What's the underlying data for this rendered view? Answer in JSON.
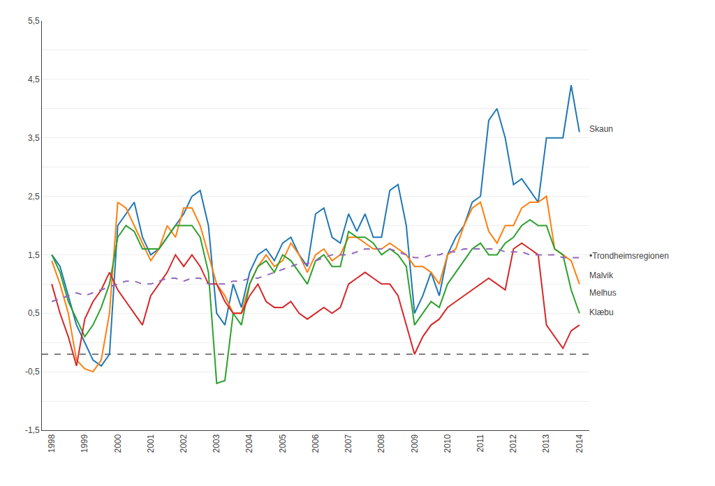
{
  "chart_data": {
    "type": "line",
    "x": [
      1998,
      1998.25,
      1998.5,
      1998.75,
      1999,
      1999.25,
      1999.5,
      1999.75,
      2000,
      2000.25,
      2000.5,
      2000.75,
      2001,
      2001.25,
      2001.5,
      2001.75,
      2002,
      2002.25,
      2002.5,
      2002.75,
      2003,
      2003.25,
      2003.5,
      2003.75,
      2004,
      2004.25,
      2004.5,
      2004.75,
      2005,
      2005.25,
      2005.5,
      2005.75,
      2006,
      2006.25,
      2006.5,
      2006.75,
      2007,
      2007.25,
      2007.5,
      2007.75,
      2008,
      2008.25,
      2008.5,
      2008.75,
      2009,
      2009.25,
      2009.5,
      2009.75,
      2010,
      2010.25,
      2010.5,
      2010.75,
      2011,
      2011.25,
      2011.5,
      2011.75,
      2012,
      2012.25,
      2012.5,
      2012.75,
      2013,
      2013.25,
      2013.5,
      2013.75,
      2014
    ],
    "series": [
      {
        "line_style": "solid",
        "values": [
          1.5,
          1.3,
          0.8,
          0.3,
          0.0,
          -0.3,
          -0.4,
          -0.2,
          2.0,
          2.2,
          2.4,
          1.8,
          1.5,
          1.6,
          1.8,
          2.0,
          2.2,
          2.5,
          2.6,
          2.0,
          0.5,
          0.3,
          1.0,
          0.6,
          1.2,
          1.5,
          1.6,
          1.4,
          1.7,
          1.8,
          1.5,
          1.3,
          2.2,
          2.3,
          1.8,
          1.7,
          2.2,
          1.9,
          2.2,
          1.8,
          1.8,
          2.6,
          2.7,
          2.0,
          0.5,
          0.8,
          1.2,
          0.8,
          1.5,
          1.8,
          2.0,
          2.4,
          2.5,
          3.8,
          4.0,
          3.5,
          2.7,
          2.8,
          2.6,
          2.4,
          3.5,
          3.5,
          3.5,
          4.4,
          3.6
        ]
      },
      {
        "line_style": "solid",
        "values": [
          1.4,
          1.0,
          0.5,
          -0.3,
          -0.45,
          -0.5,
          -0.3,
          0.5,
          2.4,
          2.3,
          2.0,
          1.7,
          1.4,
          1.6,
          2.0,
          1.8,
          2.3,
          2.3,
          2.0,
          1.5,
          1.0,
          0.8,
          0.5,
          0.5,
          1.0,
          1.3,
          1.5,
          1.3,
          1.4,
          1.7,
          1.5,
          1.2,
          1.5,
          1.6,
          1.4,
          1.5,
          1.8,
          1.8,
          1.7,
          1.6,
          1.6,
          1.7,
          1.6,
          1.5,
          1.3,
          1.3,
          1.2,
          1.0,
          1.5,
          1.6,
          2.0,
          2.3,
          2.4,
          1.9,
          1.7,
          2.0,
          2.0,
          2.3,
          2.4,
          2.4,
          2.5,
          1.6,
          1.5,
          1.4,
          1.0
        ]
      },
      {
        "line_style": "solid",
        "values": [
          1.5,
          1.2,
          0.7,
          0.4,
          0.1,
          0.3,
          0.6,
          1.0,
          1.8,
          2.0,
          1.9,
          1.6,
          1.6,
          1.6,
          1.8,
          2.0,
          2.0,
          2.0,
          1.8,
          1.2,
          -0.7,
          -0.65,
          0.5,
          0.3,
          1.0,
          1.3,
          1.4,
          1.2,
          1.5,
          1.4,
          1.2,
          1.0,
          1.4,
          1.5,
          1.3,
          1.3,
          1.9,
          1.8,
          1.8,
          1.7,
          1.5,
          1.6,
          1.5,
          1.3,
          0.3,
          0.5,
          0.7,
          0.6,
          1.0,
          1.2,
          1.4,
          1.6,
          1.7,
          1.5,
          1.5,
          1.7,
          1.8,
          2.0,
          2.1,
          2.0,
          2.0,
          1.6,
          1.5,
          0.9,
          0.5
        ]
      },
      {
        "line_style": "solid",
        "values": [
          1.0,
          0.5,
          0.1,
          -0.4,
          0.4,
          0.7,
          0.9,
          1.2,
          0.9,
          0.7,
          0.5,
          0.3,
          0.8,
          1.0,
          1.2,
          1.5,
          1.3,
          1.5,
          1.3,
          1.0,
          1.0,
          0.7,
          0.5,
          0.5,
          0.8,
          1.0,
          0.7,
          0.6,
          0.6,
          0.7,
          0.5,
          0.4,
          0.5,
          0.6,
          0.5,
          0.6,
          1.0,
          1.1,
          1.2,
          1.1,
          1.0,
          1.0,
          0.8,
          0.3,
          -0.2,
          0.1,
          0.3,
          0.4,
          0.6,
          0.7,
          0.8,
          0.9,
          1.0,
          1.1,
          1.0,
          0.9,
          1.6,
          1.7,
          1.6,
          1.5,
          0.3,
          0.1,
          -0.1,
          0.2,
          0.3
        ]
      },
      {
        "line_style": "dashed",
        "values": [
          0.7,
          0.75,
          0.8,
          0.85,
          0.8,
          0.85,
          0.9,
          0.95,
          1.0,
          1.05,
          1.05,
          1.0,
          1.0,
          1.05,
          1.1,
          1.1,
          1.05,
          1.1,
          1.1,
          1.0,
          1.0,
          1.0,
          1.05,
          1.05,
          1.1,
          1.1,
          1.15,
          1.2,
          1.25,
          1.3,
          1.35,
          1.35,
          1.4,
          1.45,
          1.5,
          1.5,
          1.5,
          1.55,
          1.6,
          1.6,
          1.6,
          1.6,
          1.55,
          1.5,
          1.45,
          1.45,
          1.5,
          1.5,
          1.55,
          1.55,
          1.6,
          1.6,
          1.6,
          1.6,
          1.6,
          1.55,
          1.55,
          1.55,
          1.5,
          1.5,
          1.5,
          1.5,
          1.45,
          1.45,
          1.45
        ]
      }
    ],
    "reference_lines": [
      {
        "y": -0.2,
        "line_style": "dashed"
      }
    ],
    "annotations": [
      {
        "text": "Skaun",
        "x": 2014.15,
        "y": 3.65
      },
      {
        "text": "•Trondheimsregionen",
        "x": 2014.15,
        "y": 1.48
      },
      {
        "text": "Malvik",
        "x": 2014.15,
        "y": 1.15
      },
      {
        "text": "Melhus",
        "x": 2014.15,
        "y": 0.85
      },
      {
        "text": "Klæbu",
        "x": 2014.15,
        "y": 0.52
      }
    ],
    "xlim": [
      1997.7,
      2014.3
    ],
    "xticks": [
      1998,
      1999,
      2000,
      2001,
      2002,
      2003,
      2004,
      2005,
      2006,
      2007,
      2008,
      2009,
      2010,
      2011,
      2012,
      2013,
      2014
    ],
    "ylim": [
      -1.5,
      5.5
    ],
    "yticks": [
      {
        "value": -1.5,
        "label": "-1,5"
      },
      {
        "value": -1.0,
        "label": null
      },
      {
        "value": -0.5,
        "label": "-0,5"
      },
      {
        "value": 0.0,
        "label": null
      },
      {
        "value": 0.5,
        "label": "0,5"
      },
      {
        "value": 1.0,
        "label": null
      },
      {
        "value": 1.5,
        "label": "1,5"
      },
      {
        "value": 2.0,
        "label": null
      },
      {
        "value": 2.5,
        "label": "2,5"
      },
      {
        "value": 3.0,
        "label": null
      },
      {
        "value": 3.5,
        "label": "3,5"
      },
      {
        "value": 4.0,
        "label": null
      },
      {
        "value": 4.5,
        "label": "4,5"
      },
      {
        "value": 5.0,
        "label": null
      },
      {
        "value": 5.5,
        "label": "5,5"
      }
    ],
    "grid": "y"
  }
}
